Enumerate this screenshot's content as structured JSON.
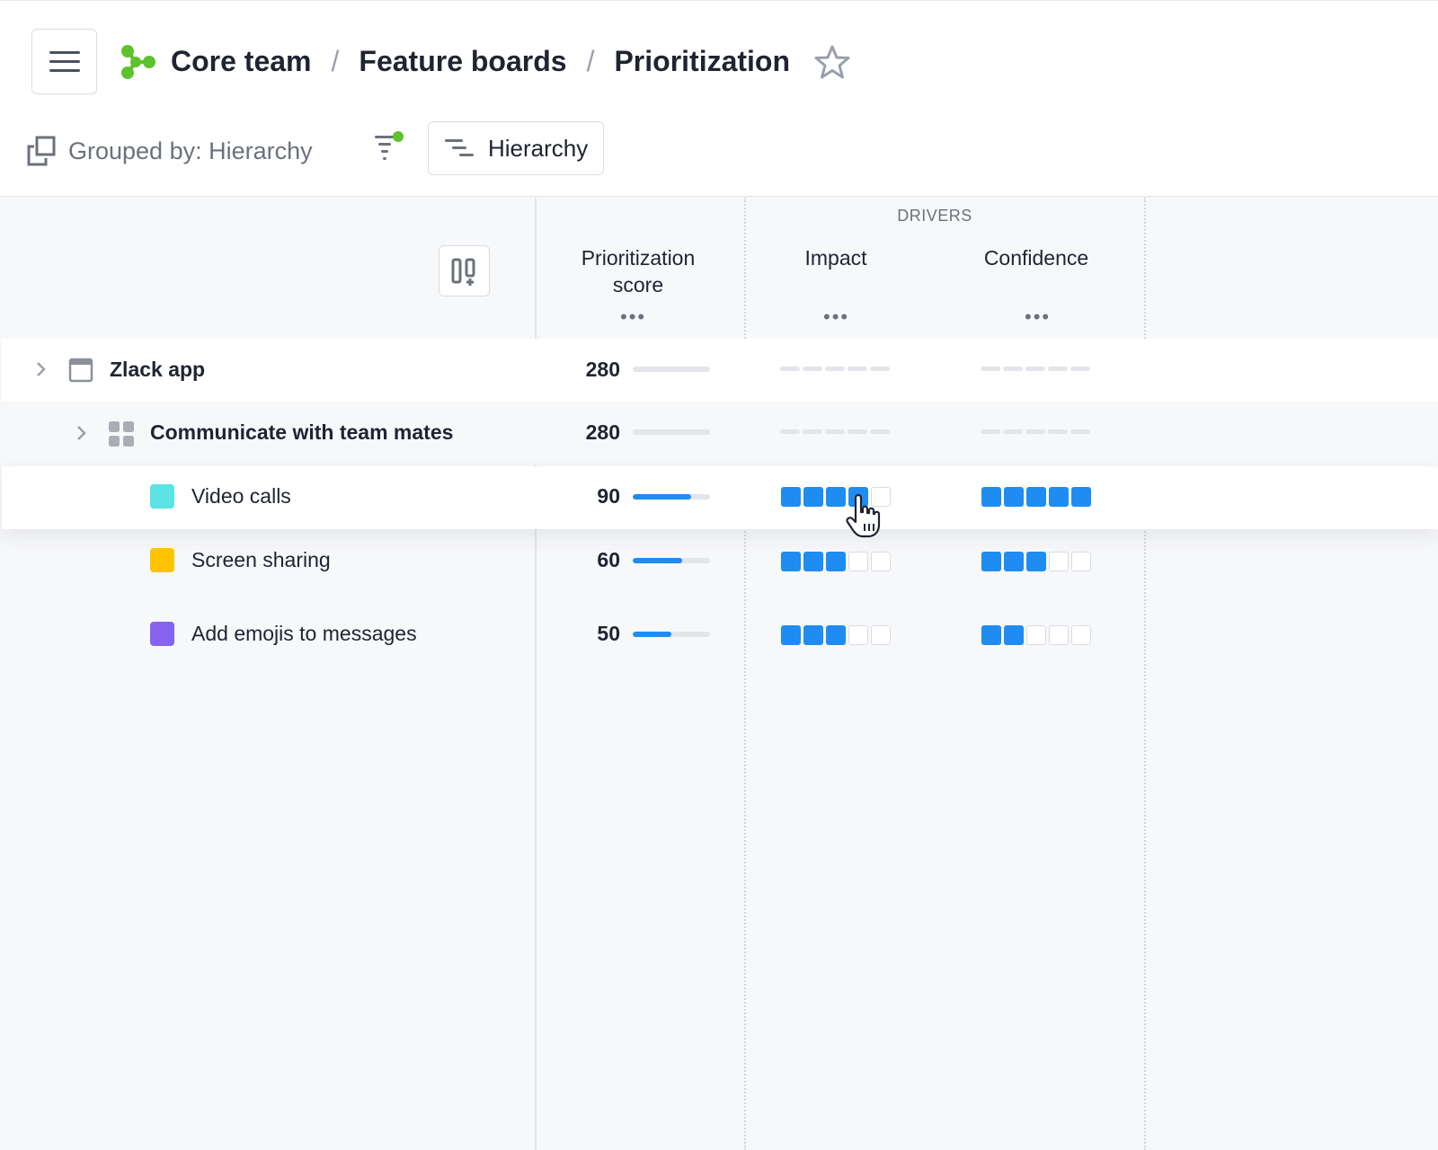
{
  "breadcrumb": [
    "Core team",
    "Feature boards",
    "Prioritization"
  ],
  "toolbar": {
    "grouped_by": "Grouped by: Hierarchy",
    "hierarchy_button": "Hierarchy"
  },
  "columns": {
    "drivers_label": "DRIVERS",
    "score_line1": "Prioritization",
    "score_line2": "score",
    "impact": "Impact",
    "confidence": "Confidence",
    "more": "•••"
  },
  "colors": {
    "accent": "#1f8cf2",
    "logo": "#5ec22d"
  },
  "rows": [
    {
      "label": "Zlack app",
      "score": "280",
      "type": "product"
    },
    {
      "label": "Communicate with team mates",
      "score": "280",
      "type": "component"
    },
    {
      "label": "Video calls",
      "score": "90",
      "score_fill": 0.76,
      "color": "#5ce3e3",
      "impact": 4,
      "confidence": 5
    },
    {
      "label": "Screen sharing",
      "score": "60",
      "score_fill": 0.64,
      "color": "#ffc400",
      "impact": 3,
      "confidence": 3
    },
    {
      "label": "Add emojis to messages",
      "score": "50",
      "score_fill": 0.5,
      "color": "#8663f0",
      "impact": 3,
      "confidence": 2
    }
  ]
}
